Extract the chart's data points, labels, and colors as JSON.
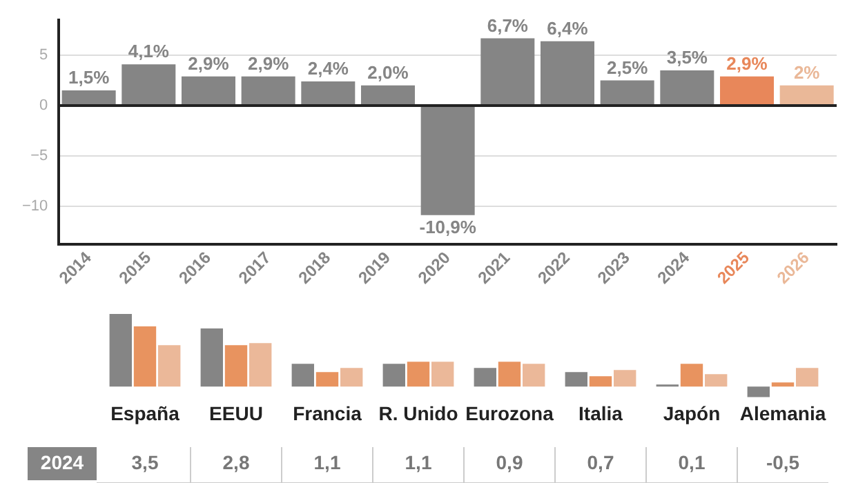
{
  "chart_data": [
    {
      "type": "bar",
      "categories": [
        "2014",
        "2015",
        "2016",
        "2017",
        "2018",
        "2019",
        "2020",
        "2021",
        "2022",
        "2023",
        "2024",
        "2025",
        "2026"
      ],
      "values": [
        1.5,
        4.1,
        2.9,
        2.9,
        2.4,
        2.0,
        -10.9,
        6.7,
        6.4,
        2.5,
        3.5,
        2.9,
        2
      ],
      "colors": [
        "#858585",
        "#858585",
        "#858585",
        "#858585",
        "#858585",
        "#858585",
        "#858585",
        "#858585",
        "#858585",
        "#858585",
        "#858585",
        "#e8875a",
        "#eab898"
      ],
      "value_labels": [
        "1,5%",
        "4,1%",
        "2,9%",
        "2,9%",
        "2,4%",
        "2,0%",
        "-10,9%",
        "6,7%",
        "6,4%",
        "2,5%",
        "3,5%",
        "2,9%",
        "2%"
      ],
      "ylim": [
        -13.8,
        8.5
      ],
      "yticks": [
        -10,
        -5,
        0,
        5
      ],
      "grid": "y",
      "legend": false,
      "ref_lines": [
        {
          "axis": "y",
          "value": 0,
          "color": "#222222"
        }
      ]
    },
    {
      "type": "bar",
      "categories": [
        "España",
        "EEUU",
        "Francia",
        "R. Unido",
        "Eurozona",
        "Italia",
        "Japón",
        "Alemania"
      ],
      "series": [
        {
          "name": "2024",
          "color": "#858585",
          "values": [
            3.5,
            2.8,
            1.1,
            1.1,
            0.9,
            0.7,
            0.1,
            -0.5
          ],
          "value_labels": [
            "3,5",
            "2,8",
            "1,1",
            "1,1",
            "0,9",
            "0,7",
            "0,1",
            "-0,5"
          ]
        },
        {
          "color": "#e8935f",
          "values": [
            2.9,
            2.0,
            0.7,
            1.2,
            1.2,
            0.5,
            1.1,
            0.2
          ]
        },
        {
          "color": "#ebb899",
          "values": [
            2.0,
            2.1,
            0.9,
            1.2,
            1.1,
            0.8,
            0.6,
            0.9
          ]
        }
      ],
      "ylim": [
        -0.6,
        3.6
      ],
      "tick_labels": "x",
      "grid": false,
      "legend": false
    }
  ]
}
